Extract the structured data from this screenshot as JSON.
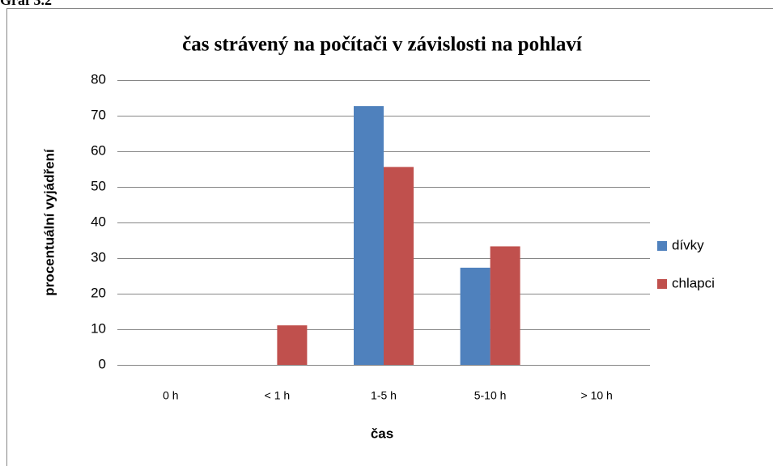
{
  "caption": "Graf 3.2",
  "chart_data": {
    "type": "bar",
    "title": "čas strávený na počítači v závislosti na pohlaví",
    "x_label": "čas",
    "y_label": "procentuální vyjádření",
    "categories": [
      "0 h",
      "< 1 h",
      "1-5 h",
      "5-10 h",
      "> 10 h"
    ],
    "series": [
      {
        "name": "dívky",
        "color": "#4f81bd",
        "values": [
          0,
          0,
          72.7,
          27.3,
          0
        ]
      },
      {
        "name": "chlapci",
        "color": "#c0504d",
        "values": [
          0,
          11.1,
          55.6,
          33.3,
          0
        ]
      }
    ],
    "ylim": [
      0,
      80
    ],
    "yticks": [
      0,
      10,
      20,
      30,
      40,
      50,
      60,
      70,
      80
    ],
    "grid": true,
    "legend": "right"
  }
}
